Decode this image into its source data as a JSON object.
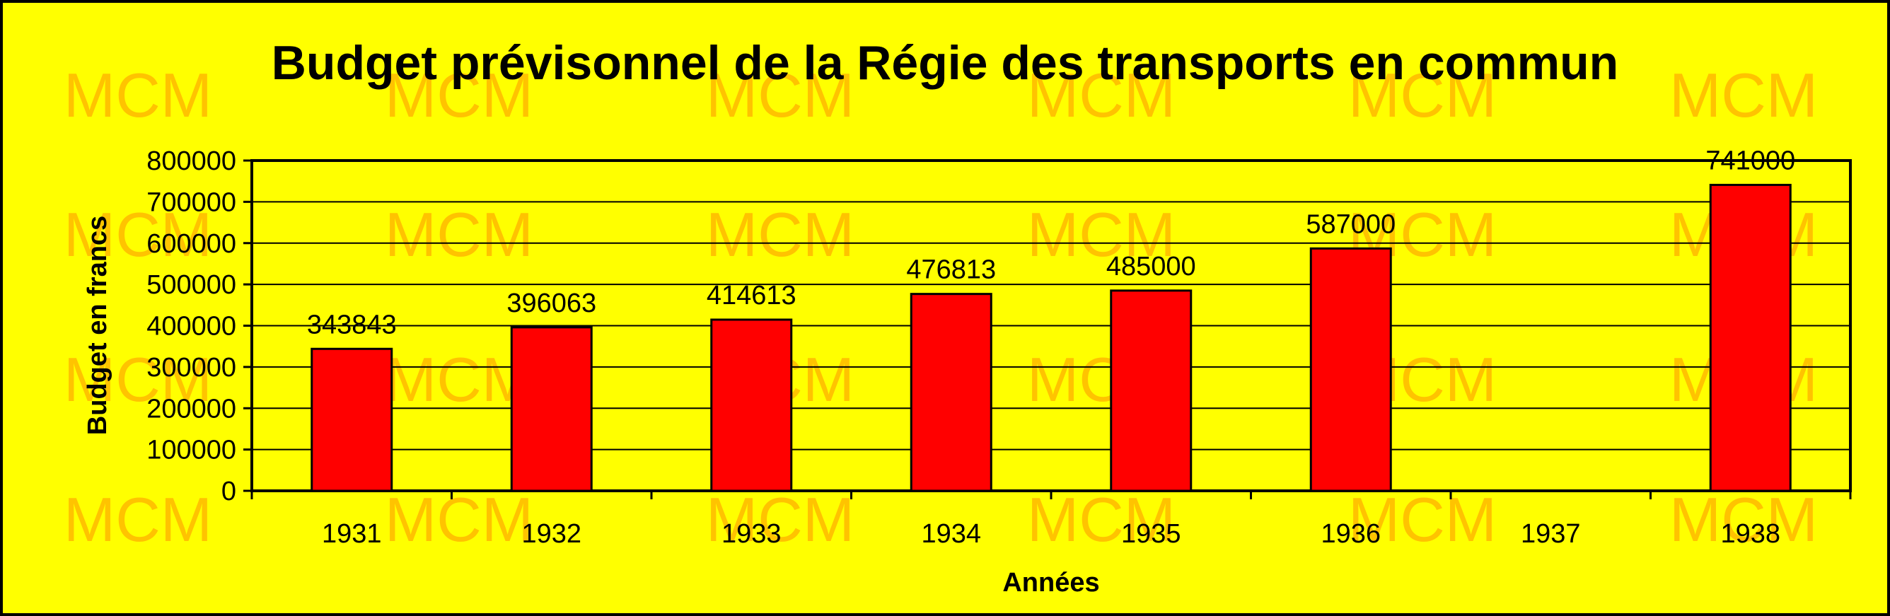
{
  "watermark": {
    "text": "MCM",
    "color": "#ffb000"
  },
  "colors": {
    "background": "#ffff00",
    "bar": "#ff0000",
    "border": "#000000"
  },
  "chart_data": {
    "type": "bar",
    "title": "Budget prévisonnel de la Régie des transports en commun",
    "xlabel": "Années",
    "ylabel": "Budget en francs",
    "categories": [
      "1931",
      "1932",
      "1933",
      "1934",
      "1935",
      "1936",
      "1937",
      "1938"
    ],
    "values": [
      343843,
      396063,
      414613,
      476813,
      485000,
      587000,
      null,
      741000
    ],
    "data_labels": [
      "343843",
      "396063",
      "414613",
      "476813",
      "485000",
      "587000",
      "",
      "741000"
    ],
    "ylim": [
      0,
      800000
    ],
    "yticks": [
      "0",
      "100000",
      "200000",
      "300000",
      "400000",
      "500000",
      "600000",
      "700000",
      "800000"
    ],
    "grid": true,
    "legend": "none"
  }
}
